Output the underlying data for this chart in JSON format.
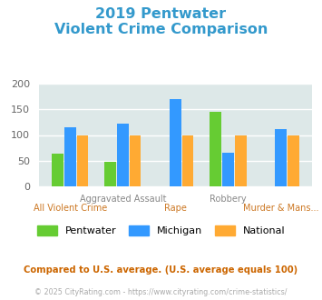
{
  "title_line1": "2019 Pentwater",
  "title_line2": "Violent Crime Comparison",
  "title_color": "#3399cc",
  "series": {
    "Pentwater": [
      63,
      48,
      0,
      145,
      0
    ],
    "Michigan": [
      115,
      122,
      170,
      65,
      112
    ],
    "National": [
      100,
      100,
      100,
      100,
      100
    ]
  },
  "n_groups": 5,
  "colors": {
    "Pentwater": "#66cc33",
    "Michigan": "#3399ff",
    "National": "#ffaa33"
  },
  "ylim": [
    0,
    200
  ],
  "yticks": [
    0,
    50,
    100,
    150,
    200
  ],
  "bg_color": "#dde8e8",
  "top_labels": [
    [
      1,
      "Aggravated Assault"
    ],
    [
      3,
      "Robbery"
    ]
  ],
  "bottom_labels": [
    [
      0,
      "All Violent Crime"
    ],
    [
      2,
      "Rape"
    ],
    [
      4,
      "Murder & Mans..."
    ]
  ],
  "top_label_color": "#888888",
  "bottom_label_color": "#cc7722",
  "footnote1": "Compared to U.S. average. (U.S. average equals 100)",
  "footnote2": "© 2025 CityRating.com - https://www.cityrating.com/crime-statistics/",
  "footnote1_color": "#cc6600",
  "footnote2_color": "#aaaaaa"
}
